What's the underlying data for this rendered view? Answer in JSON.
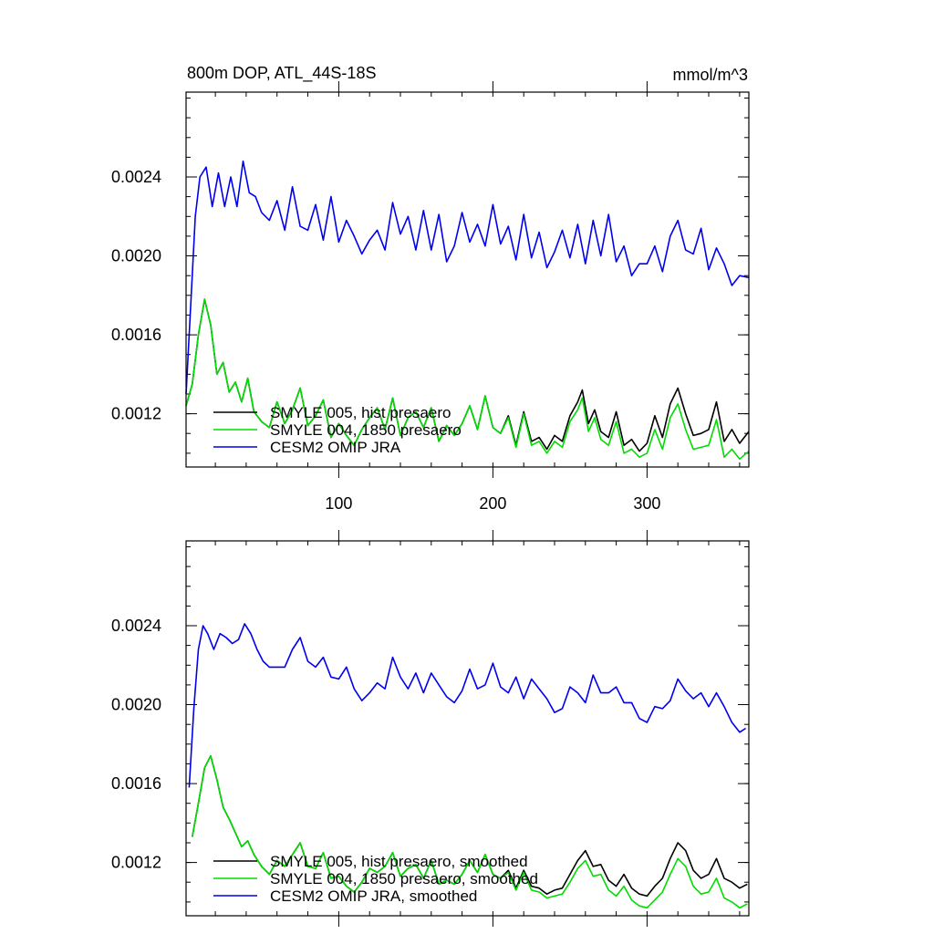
{
  "chart_data": [
    {
      "type": "line",
      "title": "800m DOP, ATL_44S-18S",
      "units": "mmol/m^3",
      "xlim": [
        1,
        366
      ],
      "ylim": [
        0.00093,
        0.00283
      ],
      "xticks": [
        100,
        200,
        300
      ],
      "xtick_labels": [
        "100",
        "200",
        "300"
      ],
      "yticks": [
        0.0012,
        0.0016,
        0.002,
        0.0024
      ],
      "ytick_labels": [
        "0.0012",
        "0.0016",
        "0.0020",
        "0.0024"
      ],
      "legend_position": "bottom-left",
      "series": [
        {
          "name": "SMYLE 005, hist presaero",
          "color": "#000000",
          "x": [
            1,
            5,
            9,
            13,
            17,
            21,
            25,
            29,
            33,
            37,
            41,
            45,
            50,
            55,
            60,
            65,
            70,
            75,
            80,
            85,
            90,
            95,
            100,
            105,
            110,
            115,
            120,
            125,
            130,
            135,
            140,
            145,
            150,
            155,
            160,
            165,
            170,
            175,
            180,
            185,
            190,
            195,
            200,
            205,
            210,
            215,
            220,
            225,
            230,
            235,
            240,
            245,
            250,
            255,
            258,
            262,
            266,
            270,
            275,
            280,
            285,
            290,
            295,
            300,
            305,
            310,
            315,
            320,
            325,
            330,
            335,
            340,
            345,
            350,
            355,
            360,
            366
          ],
          "values": [
            0.00124,
            0.00135,
            0.0016,
            0.00178,
            0.00165,
            0.0014,
            0.00146,
            0.00131,
            0.00136,
            0.00126,
            0.00138,
            0.00121,
            0.00116,
            0.00113,
            0.00126,
            0.00115,
            0.00122,
            0.00133,
            0.00114,
            0.00119,
            0.00127,
            0.00108,
            0.00115,
            0.00109,
            0.00104,
            0.00112,
            0.00118,
            0.00123,
            0.00112,
            0.00128,
            0.00109,
            0.00118,
            0.00121,
            0.00113,
            0.00123,
            0.00106,
            0.00114,
            0.00109,
            0.00115,
            0.00124,
            0.00112,
            0.00129,
            0.00113,
            0.0011,
            0.00119,
            0.00104,
            0.00121,
            0.00106,
            0.00108,
            0.00102,
            0.00109,
            0.00106,
            0.00119,
            0.00126,
            0.00132,
            0.00115,
            0.00122,
            0.00111,
            0.00108,
            0.00121,
            0.00104,
            0.00107,
            0.00101,
            0.00105,
            0.00119,
            0.00108,
            0.00125,
            0.00133,
            0.0012,
            0.00109,
            0.0011,
            0.00112,
            0.00126,
            0.00106,
            0.00112,
            0.00105,
            0.00111
          ]
        },
        {
          "name": "SMYLE 004, 1850 presaero",
          "color": "#00dd00",
          "x": [
            1,
            5,
            9,
            13,
            17,
            21,
            25,
            29,
            33,
            37,
            41,
            45,
            50,
            55,
            60,
            65,
            70,
            75,
            80,
            85,
            90,
            95,
            100,
            105,
            110,
            115,
            120,
            125,
            130,
            135,
            140,
            145,
            150,
            155,
            160,
            165,
            170,
            175,
            180,
            185,
            190,
            195,
            200,
            205,
            210,
            215,
            220,
            225,
            230,
            235,
            240,
            245,
            250,
            255,
            258,
            262,
            266,
            270,
            275,
            280,
            285,
            290,
            295,
            300,
            305,
            310,
            315,
            320,
            325,
            330,
            335,
            340,
            345,
            350,
            355,
            360,
            366
          ],
          "values": [
            0.00124,
            0.00135,
            0.0016,
            0.00178,
            0.00165,
            0.0014,
            0.00146,
            0.00131,
            0.00136,
            0.00126,
            0.00138,
            0.00121,
            0.00116,
            0.00113,
            0.00126,
            0.00115,
            0.00122,
            0.00133,
            0.00114,
            0.00119,
            0.00127,
            0.00108,
            0.00115,
            0.00109,
            0.00104,
            0.00112,
            0.00118,
            0.00123,
            0.00112,
            0.00128,
            0.00109,
            0.00118,
            0.00121,
            0.00113,
            0.00123,
            0.00106,
            0.00114,
            0.00109,
            0.00115,
            0.00124,
            0.00112,
            0.00129,
            0.00113,
            0.0011,
            0.00118,
            0.00103,
            0.0012,
            0.00104,
            0.00106,
            0.001,
            0.00106,
            0.00103,
            0.00116,
            0.00122,
            0.00128,
            0.00111,
            0.00118,
            0.00107,
            0.00104,
            0.00116,
            0.001,
            0.00102,
            0.00098,
            0.001,
            0.00112,
            0.00102,
            0.00118,
            0.00125,
            0.00112,
            0.00102,
            0.00103,
            0.00104,
            0.00117,
            0.00098,
            0.00102,
            0.00097,
            0.00101
          ]
        },
        {
          "name": "CESM2 OMIP JRA",
          "color": "#0000ee",
          "x": [
            1,
            4,
            7,
            10,
            14,
            18,
            22,
            26,
            30,
            34,
            38,
            42,
            46,
            50,
            55,
            60,
            65,
            70,
            75,
            80,
            85,
            90,
            95,
            100,
            105,
            110,
            115,
            120,
            125,
            130,
            135,
            140,
            145,
            150,
            155,
            160,
            165,
            170,
            175,
            180,
            185,
            190,
            195,
            200,
            205,
            210,
            215,
            220,
            225,
            230,
            235,
            240,
            245,
            250,
            255,
            260,
            265,
            270,
            275,
            280,
            285,
            290,
            295,
            300,
            305,
            310,
            315,
            320,
            325,
            330,
            335,
            340,
            345,
            350,
            355,
            360,
            366
          ],
          "values": [
            0.0013,
            0.00175,
            0.0022,
            0.0024,
            0.00245,
            0.00225,
            0.00242,
            0.00225,
            0.0024,
            0.00225,
            0.00248,
            0.00232,
            0.0023,
            0.00222,
            0.00218,
            0.00228,
            0.00213,
            0.00235,
            0.00215,
            0.00213,
            0.00226,
            0.00208,
            0.0023,
            0.00207,
            0.00218,
            0.0021,
            0.00201,
            0.00208,
            0.00213,
            0.00203,
            0.00227,
            0.00211,
            0.0022,
            0.00203,
            0.00223,
            0.00203,
            0.00221,
            0.00197,
            0.00205,
            0.00222,
            0.00207,
            0.00216,
            0.00205,
            0.00226,
            0.00206,
            0.00215,
            0.00198,
            0.00221,
            0.00199,
            0.00212,
            0.00194,
            0.00202,
            0.00213,
            0.00199,
            0.00216,
            0.00196,
            0.00218,
            0.002,
            0.00221,
            0.00197,
            0.00205,
            0.0019,
            0.00196,
            0.00196,
            0.00205,
            0.00192,
            0.0021,
            0.00218,
            0.00203,
            0.00201,
            0.00214,
            0.00193,
            0.00204,
            0.00196,
            0.00185,
            0.0019,
            0.00189
          ]
        }
      ]
    },
    {
      "type": "line",
      "xlim": [
        1,
        366
      ],
      "ylim": [
        0.00093,
        0.00283
      ],
      "xticks": [
        100,
        200,
        300
      ],
      "yticks": [
        0.0012,
        0.0016,
        0.002,
        0.0024
      ],
      "ytick_labels": [
        "0.0012",
        "0.0016",
        "0.0020",
        "0.0024"
      ],
      "legend_position": "bottom-left",
      "series": [
        {
          "name": "SMYLE 005, hist presaero, smoothed",
          "color": "#000000",
          "x": [
            5,
            9,
            13,
            17,
            21,
            25,
            29,
            33,
            37,
            41,
            45,
            50,
            55,
            60,
            65,
            70,
            75,
            80,
            85,
            90,
            95,
            100,
            105,
            110,
            115,
            120,
            125,
            130,
            135,
            140,
            145,
            150,
            155,
            160,
            165,
            170,
            175,
            180,
            185,
            190,
            195,
            200,
            205,
            210,
            215,
            220,
            225,
            230,
            235,
            240,
            245,
            250,
            255,
            260,
            265,
            270,
            275,
            280,
            285,
            290,
            295,
            300,
            305,
            310,
            315,
            320,
            325,
            330,
            335,
            340,
            345,
            350,
            355,
            360,
            365
          ],
          "values": [
            0.00133,
            0.0015,
            0.00168,
            0.00174,
            0.00162,
            0.00148,
            0.00142,
            0.00135,
            0.00128,
            0.00131,
            0.00124,
            0.00118,
            0.00114,
            0.00121,
            0.00118,
            0.00124,
            0.0013,
            0.00118,
            0.00117,
            0.00125,
            0.00112,
            0.00113,
            0.00108,
            0.00105,
            0.0011,
            0.00117,
            0.00115,
            0.00118,
            0.00125,
            0.00113,
            0.00117,
            0.00119,
            0.00112,
            0.00121,
            0.00109,
            0.00111,
            0.00109,
            0.00114,
            0.00121,
            0.00115,
            0.00124,
            0.00114,
            0.00112,
            0.00116,
            0.00107,
            0.00116,
            0.00108,
            0.00107,
            0.00104,
            0.00106,
            0.00107,
            0.00114,
            0.00121,
            0.00126,
            0.00118,
            0.00119,
            0.00111,
            0.00108,
            0.00114,
            0.00107,
            0.00104,
            0.00103,
            0.00108,
            0.00112,
            0.00122,
            0.0013,
            0.00126,
            0.00116,
            0.00112,
            0.00114,
            0.00122,
            0.00112,
            0.0011,
            0.00107,
            0.00109
          ]
        },
        {
          "name": "SMYLE 004, 1850 presaero, smoothed",
          "color": "#00dd00",
          "x": [
            5,
            9,
            13,
            17,
            21,
            25,
            29,
            33,
            37,
            41,
            45,
            50,
            55,
            60,
            65,
            70,
            75,
            80,
            85,
            90,
            95,
            100,
            105,
            110,
            115,
            120,
            125,
            130,
            135,
            140,
            145,
            150,
            155,
            160,
            165,
            170,
            175,
            180,
            185,
            190,
            195,
            200,
            205,
            210,
            215,
            220,
            225,
            230,
            235,
            240,
            245,
            250,
            255,
            260,
            265,
            270,
            275,
            280,
            285,
            290,
            295,
            300,
            305,
            310,
            315,
            320,
            325,
            330,
            335,
            340,
            345,
            350,
            355,
            360,
            365
          ],
          "values": [
            0.00133,
            0.0015,
            0.00168,
            0.00174,
            0.00162,
            0.00148,
            0.00142,
            0.00135,
            0.00128,
            0.00131,
            0.00124,
            0.00118,
            0.00114,
            0.00121,
            0.00118,
            0.00124,
            0.0013,
            0.00118,
            0.00117,
            0.00125,
            0.00112,
            0.00113,
            0.00108,
            0.00105,
            0.0011,
            0.00117,
            0.00115,
            0.00118,
            0.00125,
            0.00113,
            0.00117,
            0.00119,
            0.00112,
            0.00121,
            0.00109,
            0.00111,
            0.00109,
            0.00114,
            0.00121,
            0.00115,
            0.00124,
            0.00114,
            0.00112,
            0.00115,
            0.00106,
            0.00115,
            0.00106,
            0.00105,
            0.00102,
            0.00103,
            0.00104,
            0.0011,
            0.00117,
            0.00121,
            0.00113,
            0.00114,
            0.00106,
            0.00103,
            0.00108,
            0.00101,
            0.00098,
            0.00097,
            0.00101,
            0.00105,
            0.00114,
            0.00122,
            0.00118,
            0.00108,
            0.00104,
            0.00105,
            0.00112,
            0.00102,
            0.001,
            0.00097,
            0.00099
          ]
        },
        {
          "name": "CESM2 OMIP JRA, smoothed",
          "color": "#0000ee",
          "x": [
            3,
            6,
            9,
            12,
            15,
            19,
            23,
            27,
            31,
            35,
            39,
            43,
            47,
            51,
            55,
            60,
            65,
            70,
            75,
            80,
            85,
            90,
            95,
            100,
            105,
            110,
            115,
            120,
            125,
            130,
            135,
            140,
            145,
            150,
            155,
            160,
            165,
            170,
            175,
            180,
            185,
            190,
            195,
            200,
            205,
            210,
            215,
            220,
            225,
            230,
            235,
            240,
            245,
            250,
            255,
            260,
            265,
            270,
            275,
            280,
            285,
            290,
            295,
            300,
            305,
            310,
            315,
            320,
            325,
            330,
            335,
            340,
            345,
            350,
            355,
            360,
            364
          ],
          "values": [
            0.00158,
            0.00198,
            0.00228,
            0.0024,
            0.00236,
            0.00228,
            0.00236,
            0.00234,
            0.00231,
            0.00233,
            0.00241,
            0.00236,
            0.00228,
            0.00222,
            0.00219,
            0.00219,
            0.00219,
            0.00228,
            0.00234,
            0.00222,
            0.00219,
            0.00224,
            0.00214,
            0.00213,
            0.00219,
            0.00208,
            0.00202,
            0.00206,
            0.00211,
            0.00208,
            0.00224,
            0.00214,
            0.00208,
            0.00216,
            0.00206,
            0.00216,
            0.0021,
            0.00204,
            0.00201,
            0.00207,
            0.00218,
            0.00208,
            0.0021,
            0.00221,
            0.00209,
            0.00206,
            0.00214,
            0.00203,
            0.00213,
            0.00208,
            0.00203,
            0.00196,
            0.00198,
            0.00209,
            0.00206,
            0.00201,
            0.00215,
            0.00206,
            0.00206,
            0.00209,
            0.00201,
            0.00201,
            0.00193,
            0.00191,
            0.00199,
            0.00198,
            0.00202,
            0.00213,
            0.00207,
            0.00203,
            0.00206,
            0.00199,
            0.00206,
            0.00199,
            0.00191,
            0.00186,
            0.00188
          ]
        }
      ]
    }
  ]
}
